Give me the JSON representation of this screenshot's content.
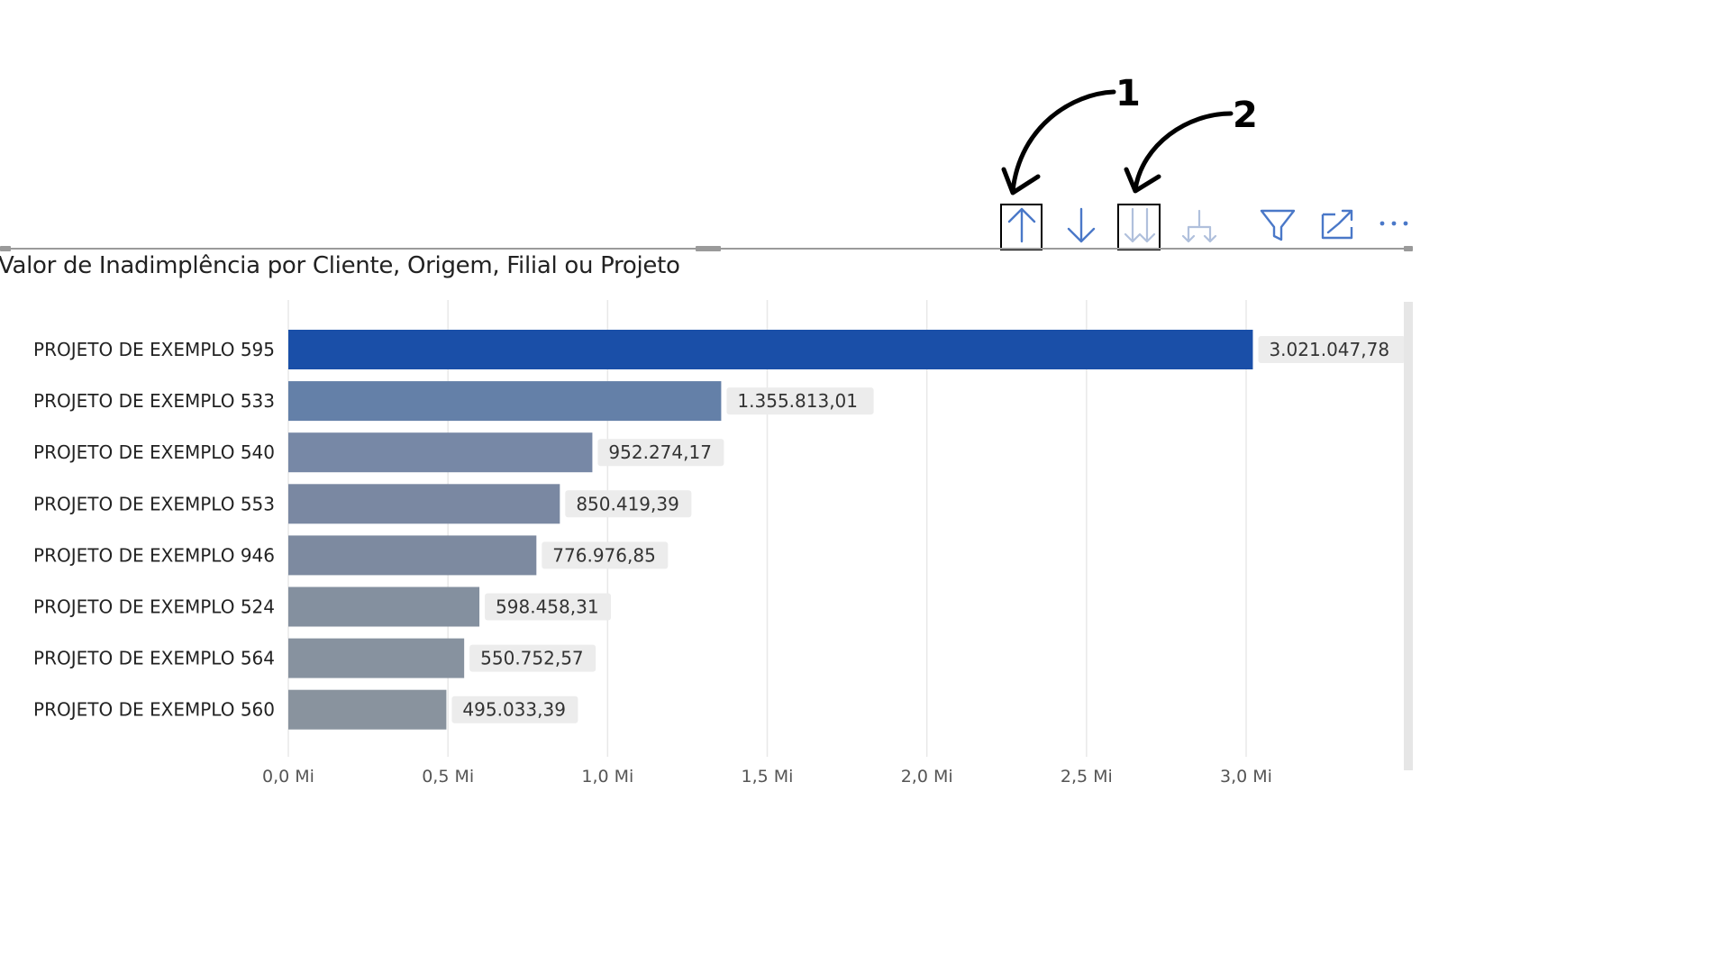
{
  "chart_data": {
    "type": "bar",
    "orientation": "horizontal",
    "title": "Valor de Inadimplência por Cliente, Origem, Filial ou Projeto",
    "categories": [
      "PROJETO DE EXEMPLO 595",
      "PROJETO DE EXEMPLO 533",
      "PROJETO DE EXEMPLO 540",
      "PROJETO DE EXEMPLO 553",
      "PROJETO DE EXEMPLO 946",
      "PROJETO DE EXEMPLO 524",
      "PROJETO DE EXEMPLO 564",
      "PROJETO DE EXEMPLO 560"
    ],
    "values": [
      3021047.78,
      1355813.01,
      952274.17,
      850419.39,
      776976.85,
      598458.31,
      550752.57,
      495033.39
    ],
    "value_labels": [
      "3.021.047,78",
      "1.355.813,01",
      "952.274,17",
      "850.419,39",
      "776.976,85",
      "598.458,31",
      "550.752,57",
      "495.033,39"
    ],
    "bar_colors": [
      "#1a4fa8",
      "#6480a8",
      "#7788a6",
      "#7a88a2",
      "#7d8aa0",
      "#84909f",
      "#87929f",
      "#89939e"
    ],
    "xlim": [
      0,
      3000000
    ],
    "xticks": [
      0,
      500000,
      1000000,
      1500000,
      2000000,
      2500000,
      3000000
    ],
    "xtick_labels": [
      "0,0 Mi",
      "0,5 Mi",
      "1,0 Mi",
      "1,5 Mi",
      "2,0 Mi",
      "2,5 Mi",
      "3,0 Mi"
    ],
    "xlabel": "",
    "ylabel": "",
    "grid": true,
    "legend": "none"
  },
  "toolbar": {
    "icons": [
      "drill-up-icon",
      "drill-down-icon",
      "expand-all-icon",
      "expand-hierarchy-icon",
      "filter-icon",
      "focus-mode-icon",
      "more-options-icon"
    ]
  },
  "annotations": {
    "labels": [
      "1",
      "2"
    ]
  },
  "colors": {
    "accent": "#1a4fa8",
    "icon": "#4a78c8",
    "icon_disabled": "#b0c0dc",
    "grid": "#e8e8e8",
    "label_bg": "#ececec"
  }
}
